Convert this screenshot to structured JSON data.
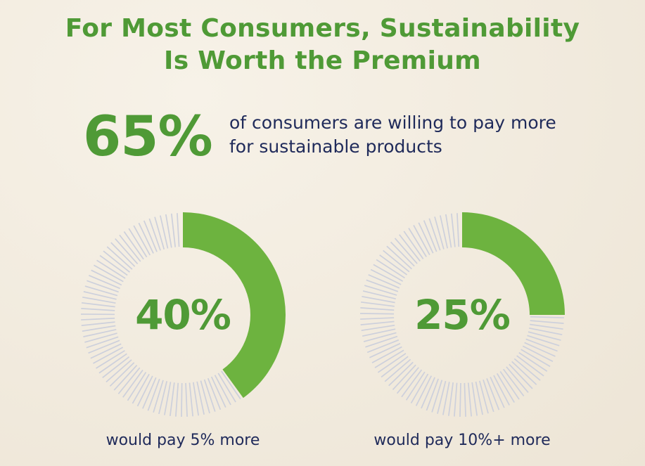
{
  "title_line1": "For Most Consumers, Sustainability",
  "title_line2": "Is Worth the Premium",
  "headline": {
    "value": "65%",
    "text_line1": "of consumers are willing to pay more",
    "text_line2": "for sustainable products"
  },
  "colors": {
    "accent": "#6db33f",
    "accent_text": "#4f9a36",
    "track": "#cdd0dc",
    "body_text": "#1f2a5a"
  },
  "chart_data": [
    {
      "type": "pie",
      "subtype": "donut",
      "label": "40%",
      "caption": "would pay 5% more",
      "values": [
        40,
        60
      ]
    },
    {
      "type": "pie",
      "subtype": "donut",
      "label": "25%",
      "caption": "would pay 10%+ more",
      "values": [
        25,
        75
      ]
    }
  ]
}
